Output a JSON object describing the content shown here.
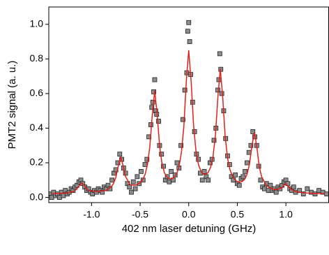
{
  "chart_data": {
    "type": "scatter",
    "x_label": "402 nm laser detuning (GHz)",
    "y_label": "PMT2 signal (a. u.)",
    "xlim": [
      -1.44,
      1.44
    ],
    "ylim": [
      -0.03,
      1.1
    ],
    "xticks": [
      {
        "value": -1,
        "label": "-1.0"
      },
      -0.5,
      {
        "value": 0,
        "label": "0.0"
      },
      0.5,
      {
        "value": 1,
        "label": "1.0"
      }
    ],
    "yticks": [
      {
        "value": 0,
        "label": "0.0"
      },
      0.2,
      0.4,
      0.6,
      0.8,
      {
        "value": 1,
        "label": "1.0"
      }
    ],
    "series": [
      {
        "type": "scatter",
        "color": "#8c8c8c",
        "x": [
          -1.43,
          -1.41,
          -1.39,
          -1.37,
          -1.35,
          -1.33,
          -1.31,
          -1.29,
          -1.27,
          -1.25,
          -1.23,
          -1.21,
          -1.19,
          -1.17,
          -1.15,
          -1.13,
          -1.11,
          -1.09,
          -1.07,
          -1.05,
          -1.03,
          -1.01,
          -0.99,
          -0.97,
          -0.95,
          -0.93,
          -0.91,
          -0.89,
          -0.87,
          -0.85,
          -0.83,
          -0.81,
          -0.79,
          -0.77,
          -0.75,
          -0.73,
          -0.71,
          -0.69,
          -0.67,
          -0.65,
          -0.63,
          -0.61,
          -0.59,
          -0.57,
          -0.55,
          -0.53,
          -0.51,
          -0.49,
          -0.47,
          -0.45,
          -0.43,
          -0.41,
          -0.39,
          -0.38,
          -0.37,
          -0.36,
          -0.35,
          -0.34,
          -0.33,
          -0.31,
          -0.3,
          -0.28,
          -0.26,
          -0.24,
          -0.22,
          -0.2,
          -0.18,
          -0.16,
          -0.14,
          -0.12,
          -0.1,
          -0.08,
          -0.06,
          -0.04,
          -0.02,
          -0.01,
          0,
          0.01,
          0.02,
          0.04,
          0.06,
          0.08,
          0.1,
          0.12,
          0.14,
          0.16,
          0.18,
          0.2,
          0.22,
          0.24,
          0.26,
          0.28,
          0.3,
          0.31,
          0.32,
          0.33,
          0.34,
          0.36,
          0.38,
          0.4,
          0.42,
          0.44,
          0.46,
          0.48,
          0.5,
          0.52,
          0.54,
          0.56,
          0.58,
          0.6,
          0.62,
          0.64,
          0.66,
          0.68,
          0.7,
          0.72,
          0.74,
          0.76,
          0.78,
          0.8,
          0.82,
          0.84,
          0.86,
          0.88,
          0.9,
          0.92,
          0.94,
          0.96,
          0.98,
          1.0,
          1.02,
          1.04,
          1.06,
          1.08,
          1.1,
          1.14,
          1.18,
          1.22,
          1.26,
          1.3,
          1.34,
          1.38,
          1.42
        ],
        "values": [
          0.02,
          0.0,
          0.03,
          0.01,
          0.02,
          0.0,
          0.03,
          0.01,
          0.04,
          0.02,
          0.03,
          0.05,
          0.04,
          0.06,
          0.07,
          0.09,
          0.1,
          0.08,
          0.06,
          0.04,
          0.05,
          0.03,
          0.02,
          0.04,
          0.03,
          0.05,
          0.04,
          0.03,
          0.06,
          0.05,
          0.07,
          0.05,
          0.1,
          0.14,
          0.16,
          0.2,
          0.25,
          0.22,
          0.17,
          0.14,
          0.08,
          0.06,
          0.03,
          0.09,
          0.05,
          0.12,
          0.08,
          0.15,
          0.1,
          0.19,
          0.22,
          0.35,
          0.42,
          0.52,
          0.55,
          0.61,
          0.68,
          0.5,
          0.48,
          0.44,
          0.3,
          0.25,
          0.18,
          0.1,
          0.12,
          0.09,
          0.15,
          0.1,
          0.13,
          0.2,
          0.17,
          0.3,
          0.45,
          0.62,
          0.72,
          0.96,
          1.01,
          0.9,
          0.71,
          0.55,
          0.38,
          0.25,
          0.22,
          0.14,
          0.1,
          0.15,
          0.12,
          0.1,
          0.2,
          0.22,
          0.33,
          0.4,
          0.62,
          0.68,
          0.83,
          0.74,
          0.6,
          0.5,
          0.34,
          0.24,
          0.19,
          0.12,
          0.1,
          0.13,
          0.08,
          0.07,
          0.11,
          0.12,
          0.15,
          0.2,
          0.26,
          0.3,
          0.38,
          0.35,
          0.3,
          0.18,
          0.1,
          0.06,
          0.05,
          0.08,
          0.04,
          0.07,
          0.04,
          0.05,
          0.03,
          0.06,
          0.05,
          0.07,
          0.09,
          0.1,
          0.08,
          0.05,
          0.04,
          0.06,
          0.03,
          0.04,
          0.02,
          0.05,
          0.03,
          0.02,
          0.04,
          0.03,
          0.02
        ]
      },
      {
        "type": "line",
        "color": "#e0201b",
        "x": [
          -1.4,
          -1.3,
          -1.25,
          -1.2,
          -1.175,
          -1.15,
          -1.125,
          -1.1,
          -1.075,
          -1.05,
          -1.025,
          -1.0,
          -0.95,
          -0.9,
          -0.85,
          -0.8,
          -0.775,
          -0.75,
          -0.725,
          -0.7,
          -0.675,
          -0.65,
          -0.6,
          -0.55,
          -0.5,
          -0.475,
          -0.45,
          -0.425,
          -0.4,
          -0.375,
          -0.35,
          -0.325,
          -0.3,
          -0.275,
          -0.25,
          -0.225,
          -0.2,
          -0.175,
          -0.15,
          -0.125,
          -0.1,
          -0.075,
          -0.05,
          -0.025,
          0,
          0.025,
          0.05,
          0.075,
          0.1,
          0.125,
          0.15,
          0.175,
          0.2,
          0.225,
          0.25,
          0.275,
          0.3,
          0.325,
          0.35,
          0.375,
          0.4,
          0.425,
          0.45,
          0.475,
          0.5,
          0.525,
          0.55,
          0.575,
          0.6,
          0.625,
          0.65,
          0.675,
          0.7,
          0.725,
          0.75,
          0.8,
          0.85,
          0.9,
          0.95,
          0.975,
          1.0,
          1.025,
          1.05,
          1.1,
          1.2,
          1.3,
          1.4
        ],
        "values": [
          0.022,
          0.024,
          0.026,
          0.032,
          0.038,
          0.05,
          0.068,
          0.083,
          0.069,
          0.05,
          0.04,
          0.037,
          0.034,
          0.036,
          0.041,
          0.06,
          0.079,
          0.116,
          0.181,
          0.232,
          0.183,
          0.12,
          0.072,
          0.07,
          0.085,
          0.102,
          0.131,
          0.188,
          0.294,
          0.478,
          0.617,
          0.481,
          0.3,
          0.195,
          0.142,
          0.119,
          0.108,
          0.107,
          0.116,
          0.136,
          0.176,
          0.261,
          0.41,
          0.669,
          0.85,
          0.669,
          0.416,
          0.265,
          0.19,
          0.153,
          0.135,
          0.133,
          0.144,
          0.174,
          0.235,
          0.359,
          0.579,
          0.743,
          0.577,
          0.352,
          0.226,
          0.159,
          0.123,
          0.102,
          0.091,
          0.088,
          0.092,
          0.104,
          0.133,
          0.191,
          0.297,
          0.376,
          0.296,
          0.181,
          0.12,
          0.068,
          0.051,
          0.045,
          0.054,
          0.068,
          0.079,
          0.063,
          0.048,
          0.033,
          0.026,
          0.023,
          0.021
        ]
      }
    ]
  }
}
